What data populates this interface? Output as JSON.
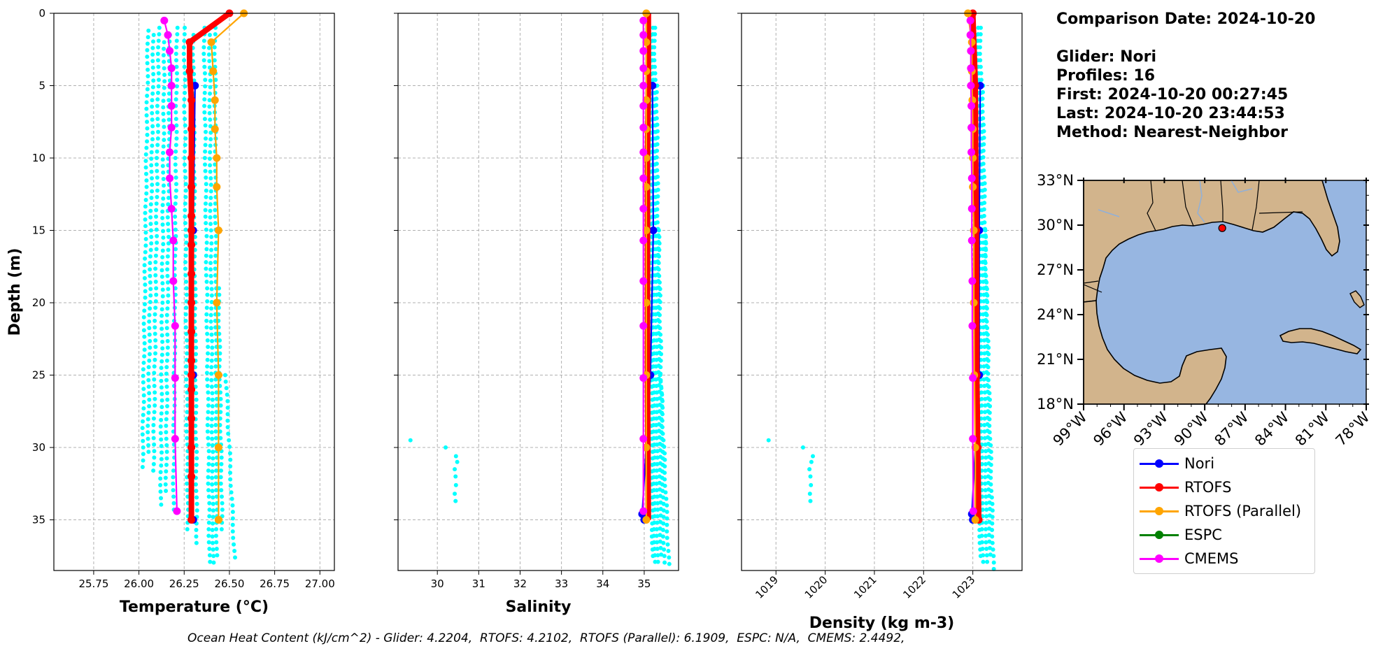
{
  "info": {
    "date_line": "Comparison Date: 2024-10-20",
    "glider_line": "Glider: Nori",
    "profiles_line": "Profiles: 16",
    "first_line": "First: 2024-10-20 00:27:45",
    "last_line": "Last: 2024-10-20 23:44:53",
    "method_line": "Method: Nearest-Neighbor"
  },
  "footer": "Ocean Heat Content (kJ/cm^2) - Glider: 4.2204,  RTOFS: 4.2102,  RTOFS (Parallel): 6.1909,  ESPC: N/A,  CMEMS: 2.4492,",
  "legend": [
    {
      "name": "Nori",
      "color": "#0000ff"
    },
    {
      "name": "RTOFS",
      "color": "#ff0000"
    },
    {
      "name": "RTOFS (Parallel)",
      "color": "#ffa500"
    },
    {
      "name": "ESPC",
      "color": "#008000"
    },
    {
      "name": "CMEMS",
      "color": "#ff00ff"
    }
  ],
  "chart_data": [
    {
      "type": "line",
      "id": "temperature",
      "xlabel": "Temperature (°C)",
      "ylabel": "Depth (m)",
      "xlim": [
        25.53,
        27.08
      ],
      "ylim": [
        38.5,
        0
      ],
      "xticks": [
        "25.75",
        "26.00",
        "26.25",
        "26.50",
        "26.75",
        "27.00"
      ],
      "xtick_values": [
        25.75,
        26.0,
        26.25,
        26.5,
        26.75,
        27.0
      ],
      "yticks": [
        "0",
        "5",
        "10",
        "15",
        "20",
        "25",
        "30",
        "35"
      ],
      "ytick_values": [
        0,
        5,
        10,
        15,
        20,
        25,
        30,
        35
      ],
      "grid": true,
      "glider_dots": {
        "color": "#00ffff",
        "profiles": [
          {
            "x_top": 26.05,
            "x_bot": 26.02,
            "d_top": 1.2,
            "d_bot": 31.5
          },
          {
            "x_top": 26.08,
            "x_bot": 26.05,
            "d_top": 1.5,
            "d_bot": 30.5
          },
          {
            "x_top": 26.11,
            "x_bot": 26.08,
            "d_top": 1.0,
            "d_bot": 32.0
          },
          {
            "x_top": 26.14,
            "x_bot": 26.12,
            "d_top": 2.0,
            "d_bot": 34.0
          },
          {
            "x_top": 26.17,
            "x_bot": 26.15,
            "d_top": 1.5,
            "d_bot": 33.0
          },
          {
            "x_top": 26.21,
            "x_bot": 26.19,
            "d_top": 1.0,
            "d_bot": 34.5
          },
          {
            "x_top": 26.25,
            "x_bot": 26.27,
            "d_top": 1.0,
            "d_bot": 36.0
          },
          {
            "x_top": 26.3,
            "x_bot": 26.32,
            "d_top": 1.5,
            "d_bot": 37.0
          },
          {
            "x_top": 26.36,
            "x_bot": 26.39,
            "d_top": 1.0,
            "d_bot": 38.0
          },
          {
            "x_top": 26.39,
            "x_bot": 26.41,
            "d_top": 1.5,
            "d_bot": 38.0
          },
          {
            "x_top": 26.42,
            "x_bot": 26.43,
            "d_top": 1.0,
            "d_bot": 37.5
          },
          {
            "x_top": 26.44,
            "x_bot": 26.46,
            "d_top": 19.0,
            "d_bot": 36.0
          },
          {
            "x_top": 26.48,
            "x_bot": 26.53,
            "d_top": 25.0,
            "d_bot": 38.0
          }
        ]
      },
      "series": [
        {
          "name": "Nori",
          "color": "#0000ff",
          "marker": true,
          "x": [
            26.31,
            26.3,
            26.3,
            26.3
          ],
          "y": [
            5,
            15,
            25,
            35
          ]
        },
        {
          "name": "RTOFS",
          "color": "#ff0000",
          "width": 8,
          "marker": true,
          "x": [
            26.5,
            26.28,
            26.28,
            26.29,
            26.29,
            26.29,
            26.29,
            26.29,
            26.29,
            26.29,
            26.29,
            26.29,
            26.29,
            26.29,
            26.29,
            26.29,
            26.29,
            26.29,
            26.29,
            26.29
          ],
          "y": [
            0,
            2,
            4,
            6,
            8,
            10,
            12,
            14,
            15,
            16,
            18,
            20,
            22,
            24,
            25,
            26,
            28,
            30,
            32,
            35
          ]
        },
        {
          "name": "RTOFS (Parallel)",
          "color": "#ffa500",
          "marker": true,
          "x": [
            26.58,
            26.4,
            26.41,
            26.42,
            26.42,
            26.43,
            26.43,
            26.44,
            26.43,
            26.44,
            26.44,
            26.44,
            26.44
          ],
          "y": [
            0,
            2,
            4,
            6,
            8,
            10,
            12,
            15,
            20,
            25,
            30,
            35,
            35
          ]
        },
        {
          "name": "CMEMS",
          "color": "#ff00ff",
          "marker": true,
          "x": [
            26.14,
            26.16,
            26.17,
            26.18,
            26.18,
            26.18,
            26.18,
            26.17,
            26.17,
            26.18,
            26.19,
            26.19,
            26.2,
            26.2,
            26.2,
            26.21
          ],
          "y": [
            0.5,
            1.5,
            2.6,
            3.8,
            5.0,
            6.4,
            7.9,
            9.6,
            11.4,
            13.5,
            15.7,
            18.5,
            21.6,
            25.2,
            29.4,
            34.4
          ]
        }
      ]
    },
    {
      "type": "line",
      "id": "salinity",
      "xlabel": "Salinity",
      "ylabel": "",
      "xlim": [
        29.05,
        35.83
      ],
      "ylim": [
        38.5,
        0
      ],
      "xticks": [
        "30",
        "31",
        "32",
        "33",
        "34",
        "35"
      ],
      "xtick_values": [
        30,
        31,
        32,
        33,
        34,
        35
      ],
      "grid": true,
      "glider_dots": {
        "color": "#00ffff",
        "profiles": [
          {
            "x_top": 35.15,
            "x_bot": 35.2,
            "d_top": 1.5,
            "d_bot": 37.5
          },
          {
            "x_top": 35.2,
            "x_bot": 35.25,
            "d_top": 1.0,
            "d_bot": 38.0
          },
          {
            "x_top": 35.25,
            "x_bot": 35.32,
            "d_top": 1.0,
            "d_bot": 38.0
          },
          {
            "x_top": 35.3,
            "x_bot": 35.4,
            "d_top": 5.0,
            "d_bot": 37.5
          },
          {
            "x_top": 35.35,
            "x_bot": 35.48,
            "d_top": 15.0,
            "d_bot": 38.0
          },
          {
            "x_top": 35.4,
            "x_bot": 35.6,
            "d_top": 25.0,
            "d_bot": 38.5
          }
        ],
        "outliers": [
          [
            29.35,
            29.5
          ],
          [
            30.2,
            30.0
          ],
          [
            30.45,
            30.6
          ],
          [
            30.48,
            31.0
          ],
          [
            30.42,
            31.5
          ],
          [
            30.44,
            32.0
          ],
          [
            30.45,
            32.6
          ],
          [
            30.42,
            33.2
          ],
          [
            30.44,
            33.7
          ]
        ]
      },
      "series": [
        {
          "name": "Nori",
          "color": "#0000ff",
          "marker": true,
          "x": [
            35.2,
            35.22,
            35.15,
            34.95,
            35.0
          ],
          "y": [
            5,
            15,
            25,
            34.6,
            35
          ]
        },
        {
          "name": "RTOFS",
          "color": "#ff0000",
          "width": 8,
          "marker": false,
          "x": [
            35.1,
            35.1,
            35.08,
            35.08,
            35.08,
            35.08,
            35.1
          ],
          "y": [
            0,
            5,
            10,
            15,
            20,
            25,
            35
          ]
        },
        {
          "name": "RTOFS (Parallel)",
          "color": "#ffa500",
          "marker": true,
          "x": [
            35.05,
            35.05,
            35.05,
            35.05,
            35.05,
            35.05,
            35.05,
            35.05,
            35.05,
            35.05,
            35.05,
            35.05
          ],
          "y": [
            0,
            2,
            4,
            6,
            8,
            10,
            12,
            15,
            20,
            25,
            30,
            35
          ]
        },
        {
          "name": "CMEMS",
          "color": "#ff00ff",
          "marker": true,
          "x": [
            34.98,
            34.98,
            34.98,
            34.98,
            34.98,
            34.98,
            34.98,
            34.98,
            34.98,
            34.98,
            34.98,
            34.98,
            34.98,
            34.98,
            34.98,
            34.98
          ],
          "y": [
            0.5,
            1.5,
            2.6,
            3.8,
            5.0,
            6.4,
            7.9,
            9.6,
            11.4,
            13.5,
            15.7,
            18.5,
            21.6,
            25.2,
            29.4,
            34.4
          ]
        }
      ]
    },
    {
      "type": "line",
      "id": "density",
      "xlabel": "Density (kg m-3)",
      "ylabel": "",
      "xlim": [
        1018.3,
        1024.0
      ],
      "ylim": [
        38.5,
        0
      ],
      "xticks": [
        "1019",
        "1020",
        "1021",
        "1022",
        "1023"
      ],
      "xtick_values": [
        1019,
        1020,
        1021,
        1022,
        1023
      ],
      "rotate_xticks": true,
      "grid": true,
      "glider_dots": {
        "color": "#00ffff",
        "profiles": [
          {
            "x_top": 1023.05,
            "x_bot": 1023.15,
            "d_top": 1.5,
            "d_bot": 37.5
          },
          {
            "x_top": 1023.1,
            "x_bot": 1023.2,
            "d_top": 1.0,
            "d_bot": 38.0
          },
          {
            "x_top": 1023.15,
            "x_bot": 1023.28,
            "d_top": 1.0,
            "d_bot": 38.0
          },
          {
            "x_top": 1023.2,
            "x_bot": 1023.35,
            "d_top": 5.0,
            "d_bot": 37.5
          },
          {
            "x_top": 1023.25,
            "x_bot": 1023.42,
            "d_top": 15.0,
            "d_bot": 38.5
          }
        ],
        "outliers": [
          [
            1018.85,
            29.5
          ],
          [
            1019.55,
            30.0
          ],
          [
            1019.75,
            30.6
          ],
          [
            1019.72,
            31.0
          ],
          [
            1019.68,
            31.5
          ],
          [
            1019.7,
            32.0
          ],
          [
            1019.71,
            32.6
          ],
          [
            1019.69,
            33.2
          ],
          [
            1019.7,
            33.7
          ]
        ]
      },
      "series": [
        {
          "name": "Nori",
          "color": "#0000ff",
          "marker": true,
          "x": [
            1023.15,
            1023.13,
            1023.13,
            1022.98,
            1023.0
          ],
          "y": [
            5,
            15,
            25,
            34.6,
            35
          ]
        },
        {
          "name": "RTOFS",
          "color": "#ff0000",
          "width": 8,
          "marker": true,
          "x": [
            1023.0,
            1023.05,
            1023.07,
            1023.08,
            1023.1,
            1023.12
          ],
          "y": [
            0,
            5,
            15,
            25,
            30,
            35
          ]
        },
        {
          "name": "RTOFS (Parallel)",
          "color": "#ffa500",
          "marker": true,
          "x": [
            1022.9,
            1022.98,
            1022.98,
            1022.99,
            1023.0,
            1023.0,
            1023.0,
            1023.02,
            1023.02,
            1023.03,
            1023.05,
            1023.05
          ],
          "y": [
            0,
            2,
            4,
            6,
            8,
            10,
            12,
            15,
            20,
            25,
            30,
            35
          ]
        },
        {
          "name": "CMEMS",
          "color": "#ff00ff",
          "marker": true,
          "x": [
            1022.95,
            1022.95,
            1022.96,
            1022.96,
            1022.96,
            1022.97,
            1022.97,
            1022.97,
            1022.98,
            1022.98,
            1022.98,
            1022.99,
            1022.99,
            1023.0,
            1023.0,
            1023.01
          ],
          "y": [
            0.5,
            1.5,
            2.6,
            3.8,
            5.0,
            6.4,
            7.9,
            9.6,
            11.4,
            13.5,
            15.7,
            18.5,
            21.6,
            25.2,
            29.4,
            34.4
          ]
        }
      ]
    },
    {
      "type": "map",
      "id": "location-map",
      "lon_range": [
        -99,
        -78
      ],
      "lat_range": [
        18,
        33
      ],
      "lon_ticks": [
        "99°W",
        "96°W",
        "93°W",
        "90°W",
        "87°W",
        "84°W",
        "81°W",
        "78°W"
      ],
      "lon_tick_values": [
        -99,
        -96,
        -93,
        -90,
        -87,
        -84,
        -81,
        -78
      ],
      "lat_ticks": [
        "33°N",
        "30°N",
        "27°N",
        "24°N",
        "21°N",
        "18°N"
      ],
      "lat_tick_values": [
        33,
        30,
        27,
        24,
        21,
        18
      ],
      "land_color": "#d2b48c",
      "water_color": "#97b6e1",
      "glider_position": {
        "lon": -88.7,
        "lat": 29.8,
        "color": "#ff0000"
      }
    }
  ]
}
